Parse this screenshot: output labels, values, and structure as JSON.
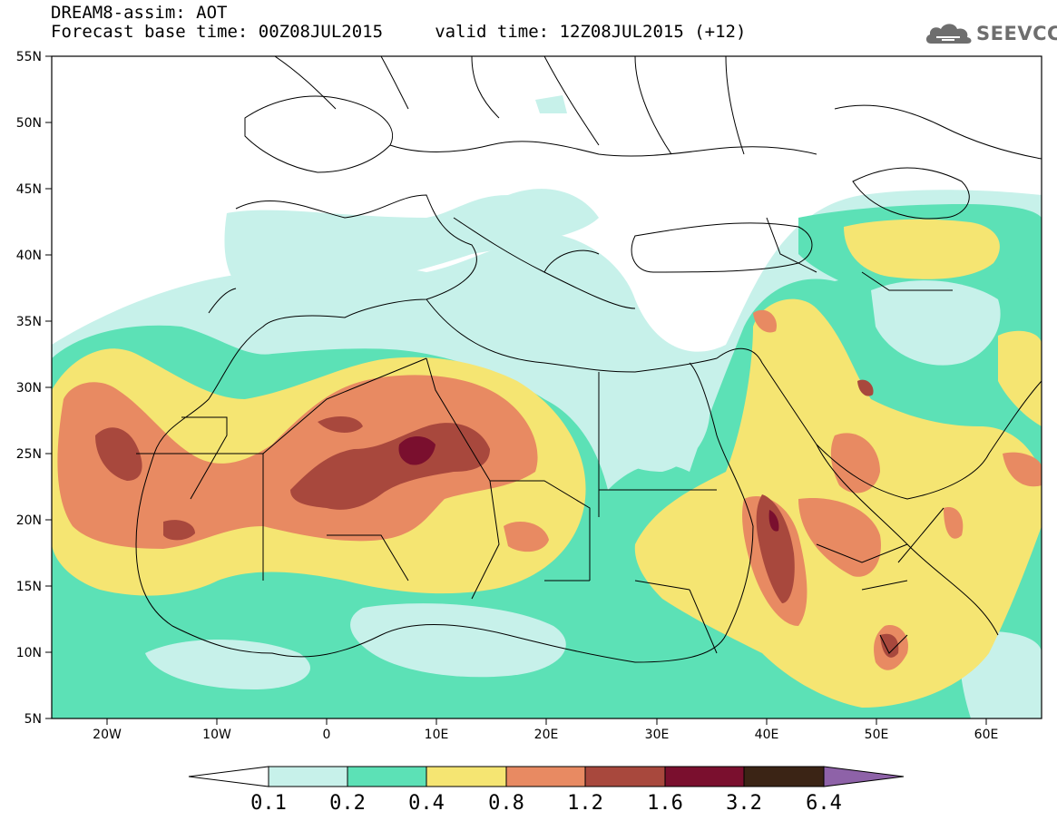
{
  "title": {
    "line1": "DREAM8-assim: AOT",
    "line2": "Forecast base time: 00Z08JUL2015     valid time: 12Z08JUL2015 (+12)"
  },
  "logo": {
    "text": "SEEVCCC",
    "icon": "cloud-icon",
    "color": "#6e6e6e"
  },
  "map": {
    "lat_labels": [
      "55N",
      "50N",
      "45N",
      "40N",
      "35N",
      "30N",
      "25N",
      "20N",
      "15N",
      "10N",
      "5N"
    ],
    "lon_labels": [
      "20W",
      "10W",
      "0",
      "10E",
      "20E",
      "30E",
      "40E",
      "50E",
      "60E"
    ]
  },
  "colorbar": {
    "labels": [
      "0.1",
      "0.2",
      "0.4",
      "0.8",
      "1.2",
      "1.6",
      "3.2",
      "6.4"
    ],
    "colors": [
      "#ffffff",
      "#c7f1ea",
      "#5ce1b6",
      "#f5e572",
      "#e88a62",
      "#a8483d",
      "#7a0f2e",
      "#3b2415",
      "#8e62a8"
    ]
  },
  "palette": {
    "aot_0_1_0_2": "#c7f1ea",
    "aot_0_2_0_4": "#5ce1b6",
    "aot_0_4_0_8": "#f5e572",
    "aot_0_8_1_2": "#e88a62",
    "aot_1_2_1_6": "#a8483d",
    "aot_1_6_3_2": "#7a0f2e"
  }
}
